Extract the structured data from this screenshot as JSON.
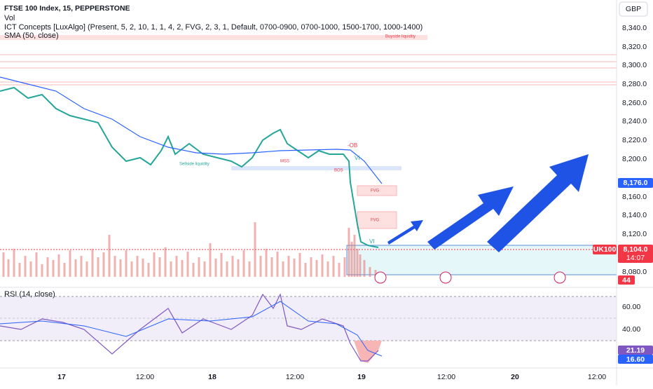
{
  "header": {
    "symbol": "FTSE 100 Index, 15, PEPPERSTONE",
    "volume": "Vol",
    "indicator": "ICT Concepts [LuxAlgo] (Present, 5, 2, 10, 1, 1, 4, 2, FVG, 2, 3, 1, Default, 0700-0900, 0700-1000, 1500-1700, 1000-1400)",
    "sma": "SMA (50, close)",
    "rsi": "RSI (14, close)"
  },
  "currency": "GBP",
  "price_axis": [
    "8,340.0",
    "8,320.0",
    "8,300.0",
    "8,280.0",
    "8,260.0",
    "8,240.0",
    "8,220.0",
    "8,200.0",
    "8,160.0",
    "8,140.0",
    "8,120.0",
    "8,080.0"
  ],
  "rsi_axis": [
    "60.00",
    "40.00"
  ],
  "time_axis": [
    "17",
    "12:00",
    "18",
    "12:00",
    "19",
    "12:00",
    "20",
    "12:00"
  ],
  "tags": {
    "sma_price": "8,176.0",
    "symbol": "UK100",
    "last_price": "8,104.0",
    "countdown": "14:07",
    "volume": "44",
    "rsi": "21.19",
    "rsi_ma": "16.60"
  },
  "annotations": {
    "buyside": "Buyside liquidity",
    "sellside": "Sellside liquidity",
    "ob": "-OB",
    "mss": "MSS",
    "bos": "BOS",
    "fvg1": "FVG",
    "fvg2": "FVG",
    "vi1": "VI",
    "vi2": "VI"
  }
}
